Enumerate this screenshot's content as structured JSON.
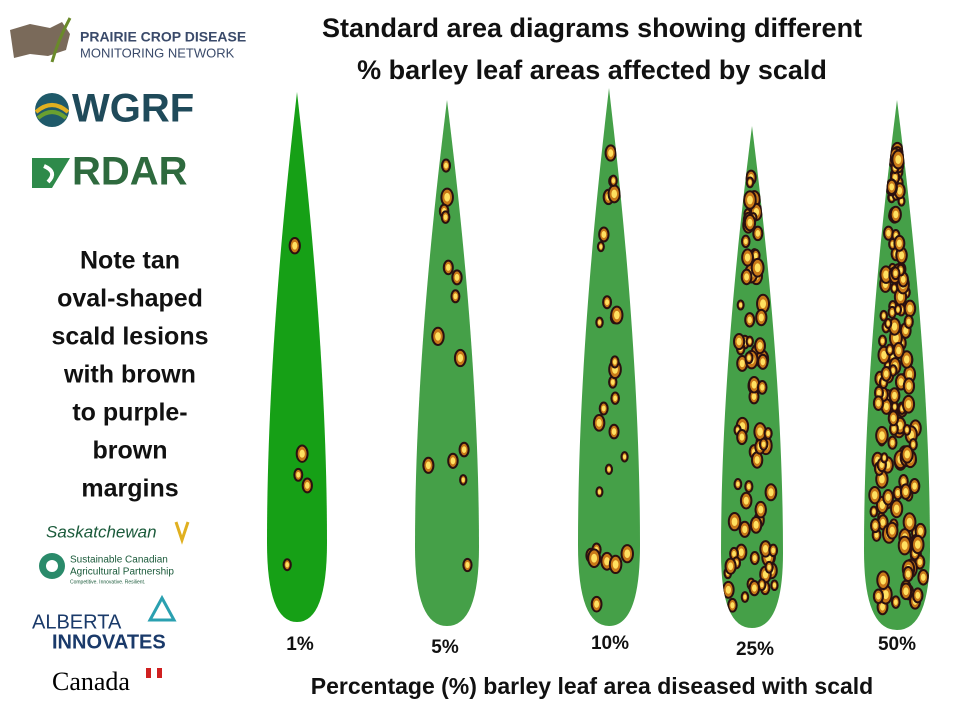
{
  "title": [
    "Standard area diagrams showing different",
    "% barley leaf areas affected by scald"
  ],
  "logos": {
    "pcdmn": [
      "PRAIRIE CROP DISEASE",
      "MONITORING NETWORK"
    ],
    "wgrf": "WGRF",
    "rdar": "RDAR",
    "sask": "Saskatchewan",
    "scap": [
      "Sustainable Canadian",
      "Agricultural Partnership"
    ],
    "scap_tag": "Competitive. Innovative. Resilient.",
    "alberta": [
      "ALBERTA",
      "INNOVATES"
    ],
    "canada": "Canada"
  },
  "note": [
    "Note tan",
    "oval-shaped",
    "scald lesions",
    "with brown",
    "to purple-",
    "brown",
    "margins"
  ],
  "leaves": [
    {
      "label": "1%"
    },
    {
      "label": "5%"
    },
    {
      "label": "10%"
    },
    {
      "label": "25%"
    },
    {
      "label": "50%"
    }
  ],
  "footer": "Percentage (%) barley leaf area diseased with scald"
}
